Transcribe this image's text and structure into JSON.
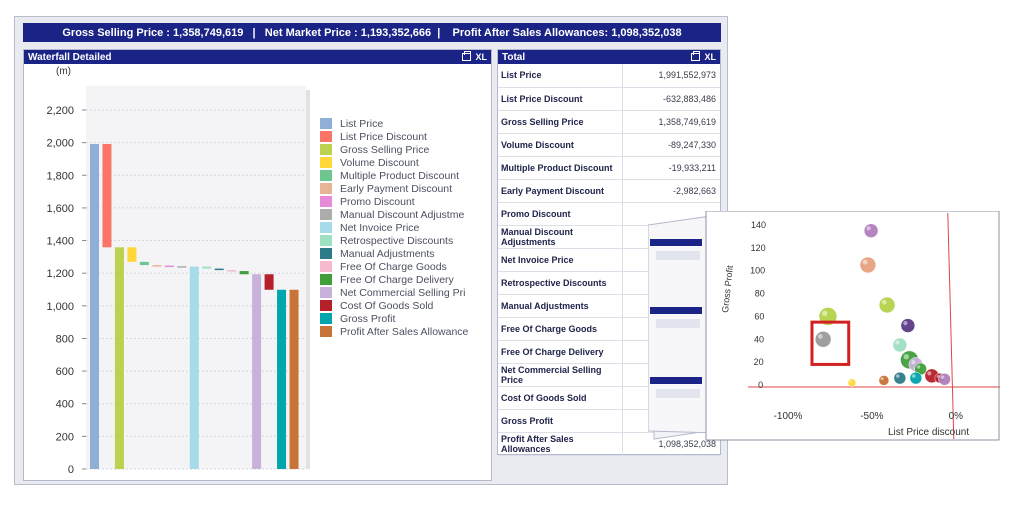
{
  "summary_bar": "Gross Selling Price : 1,358,749,619   |   Net Market Price : 1,193,352,666  |    Profit After Sales Allowances: 1,098,352,038",
  "waterfall_panel": {
    "title": "Waterfall Detailed",
    "xl_label": "XL"
  },
  "chart_data": {
    "type": "bar",
    "ylabel": "(m)",
    "ylim": [
      0,
      2300
    ],
    "yticks": [
      0,
      200,
      400,
      600,
      800,
      "1,000",
      "1,200",
      "1,400",
      "1,600",
      "1,800",
      "2,000",
      "2,200"
    ],
    "bars": [
      {
        "name": "List Price",
        "base": 0,
        "top": 1991.6,
        "color": "#8fafd6"
      },
      {
        "name": "List Price Discount",
        "base": 1358.7,
        "top": 1991.6,
        "color": "#fb7468"
      },
      {
        "name": "Gross Selling Price",
        "base": 0,
        "top": 1358.7,
        "color": "#bcd24e"
      },
      {
        "name": "Volume Discount",
        "base": 1269.5,
        "top": 1358.7,
        "color": "#ffd838"
      },
      {
        "name": "Multiple Product Discount",
        "base": 1249.6,
        "top": 1269.5,
        "color": "#6ec68f"
      },
      {
        "name": "Early Payment Discount",
        "base": 1246.6,
        "top": 1249.6,
        "color": "#e6b598"
      },
      {
        "name": "Promo Discount",
        "base": 1243.0,
        "top": 1246.6,
        "color": "#e78bd6"
      },
      {
        "name": "Manual Discount Adjustme",
        "base": 1240.5,
        "top": 1243.0,
        "color": "#acacac"
      },
      {
        "name": "Net Invoice Price",
        "base": 0,
        "top": 1240.5,
        "color": "#a6dbe9"
      },
      {
        "name": "Retrospective Discounts",
        "base": 1228.0,
        "top": 1240.5,
        "color": "#9ee0c2"
      },
      {
        "name": "Manual Adjustments",
        "base": 1219.0,
        "top": 1228.0,
        "color": "#2d7a88"
      },
      {
        "name": "Free Of Charge Goods",
        "base": 1213.0,
        "top": 1219.0,
        "color": "#f7b9ce"
      },
      {
        "name": "Free Of Charge Delivery",
        "base": 1193.4,
        "top": 1213.0,
        "color": "#3fa03a"
      },
      {
        "name": "Net Commercial Selling Pri",
        "base": 0,
        "top": 1193.4,
        "color": "#c8b2dc"
      },
      {
        "name": "Cost Of Goods Sold",
        "base": 1098.4,
        "top": 1193.4,
        "color": "#b6202a"
      },
      {
        "name": "Gross Profit",
        "base": 0,
        "top": 1098.4,
        "color": "#00a5ad"
      },
      {
        "name": "Profit After Sales Allowance",
        "base": 0,
        "top": 1098.4,
        "color": "#c87337"
      }
    ]
  },
  "total_panel": {
    "title": "Total",
    "xl_label": "XL",
    "rows": [
      {
        "label": "List Price",
        "value": "1,991,552,973"
      },
      {
        "label": "List Price Discount",
        "value": "-632,883,486"
      },
      {
        "label": "Gross Selling Price",
        "value": "1,358,749,619"
      },
      {
        "label": "Volume Discount",
        "value": "-89,247,330"
      },
      {
        "label": "Multiple Product Discount",
        "value": "-19,933,211"
      },
      {
        "label": "Early Payment Discount",
        "value": "-2,982,663"
      },
      {
        "label": "Promo Discount",
        "value": ""
      },
      {
        "label": "Manual Discount Adjustments",
        "value": ""
      },
      {
        "label": "Net Invoice Price",
        "value": ""
      },
      {
        "label": "Retrospective Discounts",
        "value": ""
      },
      {
        "label": "Manual Adjustments",
        "value": ""
      },
      {
        "label": "Free Of Charge Goods",
        "value": ""
      },
      {
        "label": "Free Of Charge Delivery",
        "value": ""
      },
      {
        "label": "Net Commercial Selling Price",
        "value": ""
      },
      {
        "label": "Cost Of Goods Sold",
        "value": ""
      },
      {
        "label": "Gross Profit",
        "value": ""
      },
      {
        "label": "Profit After Sales Allowances",
        "value": "1,098,352,038"
      }
    ]
  },
  "scatter_overlay": {
    "ylabel": "Gross Profit",
    "xlabel": "List Price discount",
    "yticks": [
      "140",
      "120",
      "100",
      "80",
      "60",
      "40",
      "20",
      "0"
    ],
    "xticks": [
      "-100%",
      "-50%",
      "0%"
    ],
    "points": [
      {
        "x": -48,
        "y": 135,
        "r": 7,
        "color": "#b07fbd"
      },
      {
        "x": -50,
        "y": 105,
        "r": 8,
        "color": "#e6a37f"
      },
      {
        "x": -38,
        "y": 70,
        "r": 8,
        "color": "#b6d24a"
      },
      {
        "x": -75,
        "y": 60,
        "r": 9,
        "color": "#b6d24a"
      },
      {
        "x": -25,
        "y": 52,
        "r": 7,
        "color": "#5c3c86"
      },
      {
        "x": -78,
        "y": 40,
        "r": 8,
        "color": "#9a9a9a"
      },
      {
        "x": -30,
        "y": 35,
        "r": 7,
        "color": "#9ee0c2"
      },
      {
        "x": -24,
        "y": 22,
        "r": 9,
        "color": "#3fa03a"
      },
      {
        "x": -20,
        "y": 18,
        "r": 7,
        "color": "#c8b2dc"
      },
      {
        "x": -17,
        "y": 14,
        "r": 6,
        "color": "#3fa03a"
      },
      {
        "x": -10,
        "y": 8,
        "r": 7,
        "color": "#b6202a"
      },
      {
        "x": -20,
        "y": 6,
        "r": 6,
        "color": "#00a5ad"
      },
      {
        "x": -30,
        "y": 6,
        "r": 6,
        "color": "#2d7a88"
      },
      {
        "x": -5,
        "y": 6,
        "r": 5,
        "color": "#b6202a"
      },
      {
        "x": -2,
        "y": 5,
        "r": 6,
        "color": "#b07fbd"
      },
      {
        "x": -40,
        "y": 4,
        "r": 5,
        "color": "#c87337"
      },
      {
        "x": -60,
        "y": 2,
        "r": 4,
        "color": "#ffd838"
      }
    ],
    "highlight": {
      "x1": -85,
      "x2": -62,
      "y1": 55,
      "y2": 18
    }
  }
}
